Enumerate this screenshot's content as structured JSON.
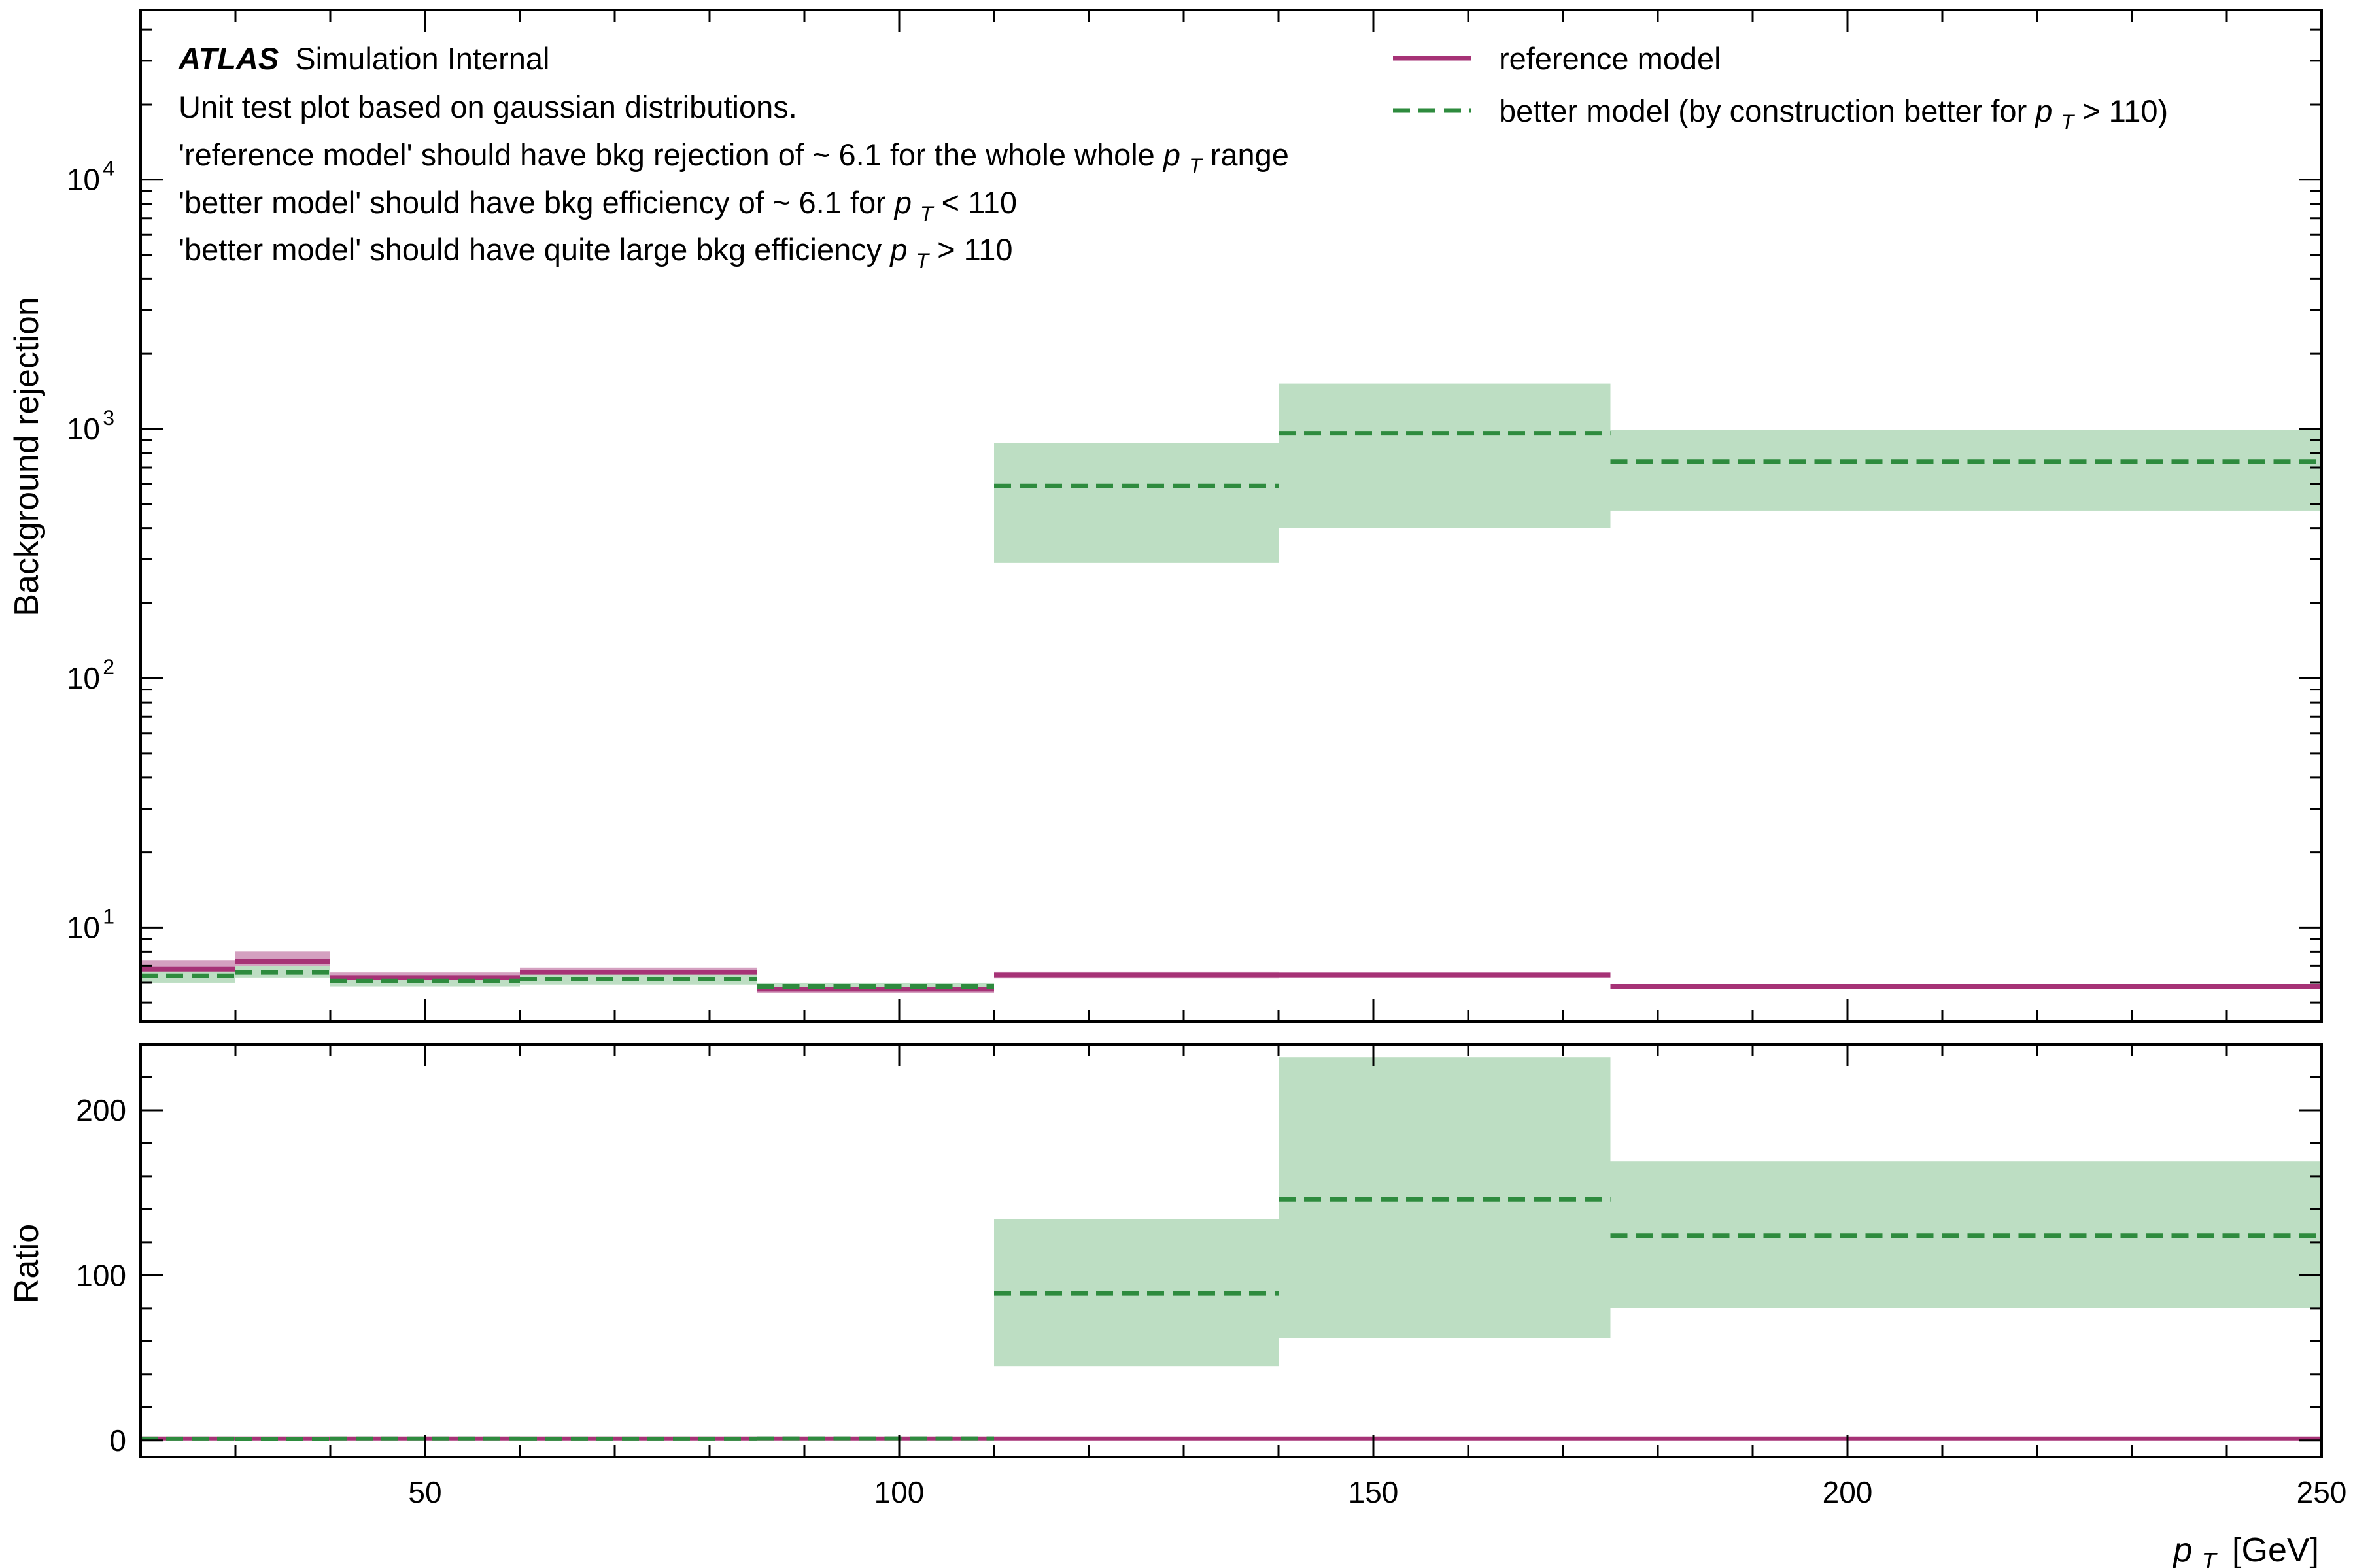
{
  "chart_data": {
    "type": "step",
    "x_bin_edges": [
      20,
      30,
      40,
      60,
      85,
      110,
      140,
      175,
      250
    ],
    "xlim": [
      20,
      250
    ],
    "xlabel": "p_T [GeV]",
    "xlabel_parts": {
      "p": "p",
      "sub": "T",
      "unit": "[GeV]"
    },
    "x_ticks": [
      50,
      100,
      150,
      200,
      250
    ],
    "top_panel": {
      "ylabel": "Background rejection",
      "yscale": "log",
      "ylim": [
        4.2,
        48000
      ],
      "y_ticks": [
        {
          "value": 10,
          "base": "10",
          "exp": "1"
        },
        {
          "value": 100,
          "base": "10",
          "exp": "2"
        },
        {
          "value": 1000,
          "base": "10",
          "exp": "3"
        },
        {
          "value": 10000,
          "base": "10",
          "exp": "4"
        }
      ],
      "series": [
        {
          "name": "reference model",
          "color": "#a63276",
          "band_color": "#d4a0c0",
          "style": "solid",
          "values": [
            6.8,
            7.3,
            6.3,
            6.6,
            5.65,
            6.45,
            6.45,
            5.8
          ],
          "band_low": [
            6.3,
            6.7,
            6.0,
            6.3,
            5.45,
            6.25,
            6.3,
            5.7
          ],
          "band_high": [
            7.4,
            8.0,
            6.6,
            6.9,
            5.85,
            6.65,
            6.6,
            5.9
          ]
        },
        {
          "name": "better model (by construction better for p_T > 110)",
          "color": "#2e8b3e",
          "band_color": "#bddec3",
          "style": "dashed",
          "values": [
            6.4,
            6.6,
            6.1,
            6.2,
            5.8,
            590,
            960,
            740
          ],
          "band_low": [
            6.0,
            6.3,
            5.8,
            5.9,
            5.6,
            290,
            400,
            470
          ],
          "band_high": [
            6.8,
            7.0,
            6.4,
            6.5,
            6.0,
            880,
            1520,
            990
          ]
        }
      ]
    },
    "bottom_panel": {
      "ylabel": "Ratio",
      "yscale": "linear",
      "ylim": [
        -10,
        240
      ],
      "y_ticks": [
        0,
        100,
        200
      ],
      "series": [
        {
          "name": "reference model",
          "color": "#a63276",
          "style": "solid",
          "values": [
            1,
            1,
            1,
            1,
            1,
            1,
            1,
            1
          ],
          "band_low": [
            0.9,
            0.9,
            0.9,
            0.9,
            0.9,
            0.95,
            0.95,
            0.95
          ],
          "band_high": [
            1.1,
            1.1,
            1.1,
            1.1,
            1.1,
            1.05,
            1.05,
            1.05
          ]
        },
        {
          "name": "better model",
          "color": "#2e8b3e",
          "band_color": "#bddec3",
          "style": "dashed",
          "values": [
            0.95,
            0.9,
            0.97,
            0.94,
            1.02,
            89,
            146,
            124
          ],
          "band_low": [
            0.8,
            0.8,
            0.85,
            0.85,
            0.9,
            45,
            62,
            80
          ],
          "band_high": [
            1.1,
            1.0,
            1.1,
            1.05,
            1.15,
            134,
            232,
            169
          ]
        }
      ]
    },
    "annotations": {
      "atlas_label": "ATLAS",
      "atlas_suffix": "Simulation Internal",
      "line1": "Unit test plot based on gaussian distributions.",
      "line2_pre": "'reference model' should have bkg rejection of ~ 6.1 for the whole whole ",
      "line2_post": " range",
      "line3_pre": "'better model' should have bkg efficiency of ~ 6.1 for ",
      "line3_cond": " < 110",
      "line4_pre": "'better model' should have quite large bkg efficiency ",
      "line4_cond": " > 110",
      "pt_p": "p",
      "pt_sub": "T"
    },
    "legend": {
      "position": "top-right",
      "entries": [
        {
          "label": "reference model",
          "color": "#a63276",
          "style": "solid"
        },
        {
          "label_pre": "better model (by construction better for ",
          "label_post": " > 110)",
          "color": "#2e8b3e",
          "style": "dashed"
        }
      ]
    }
  }
}
